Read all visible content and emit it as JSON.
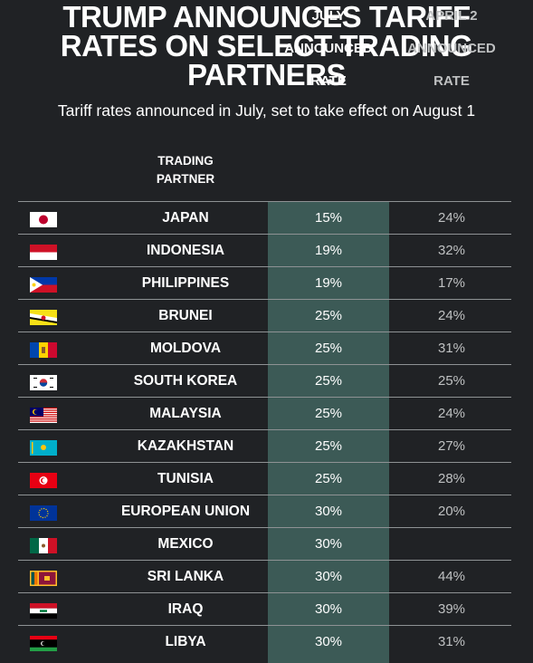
{
  "header": {
    "title_line1": "TRUMP ANNOUNCES TARIFF",
    "title_line2": "RATES ON SELECT TRADING",
    "title_line3": "PARTNERS",
    "subtitle": "Tariff rates announced in July, set to take effect on August 1"
  },
  "columns": {
    "partner": [
      "TRADING",
      "PARTNER"
    ],
    "july": [
      "JULY",
      "ANNOUNCED",
      "RATE"
    ],
    "april": [
      "APRIL 2",
      "ANNOUNCED",
      "RATE"
    ]
  },
  "colors": {
    "background": "#202225",
    "highlight_column": "#3c5a56",
    "divider": "#8e9294",
    "text": "#ffffff",
    "muted_text": "#bfc1c2"
  },
  "chart_data": {
    "type": "table",
    "title": "TRUMP ANNOUNCES TARIFF RATES ON SELECT TRADING PARTNERS",
    "subtitle": "Tariff rates announced in July, set to take effect on August 1",
    "columns": [
      "TRADING PARTNER",
      "JULY ANNOUNCED RATE",
      "APRIL 2 ANNOUNCED RATE"
    ],
    "rows": [
      {
        "partner": "JAPAN",
        "flag": "japan-flag-icon",
        "july": "15%",
        "april": "24%"
      },
      {
        "partner": "INDONESIA",
        "flag": "indonesia-flag-icon",
        "july": "19%",
        "april": "32%"
      },
      {
        "partner": "PHILIPPINES",
        "flag": "philippines-flag-icon",
        "july": "19%",
        "april": "17%"
      },
      {
        "partner": "BRUNEI",
        "flag": "brunei-flag-icon",
        "july": "25%",
        "april": "24%"
      },
      {
        "partner": "MOLDOVA",
        "flag": "moldova-flag-icon",
        "july": "25%",
        "april": "31%"
      },
      {
        "partner": "SOUTH KOREA",
        "flag": "south-korea-flag-icon",
        "july": "25%",
        "april": "25%"
      },
      {
        "partner": "MALAYSIA",
        "flag": "malaysia-flag-icon",
        "july": "25%",
        "april": "24%"
      },
      {
        "partner": "KAZAKHSTAN",
        "flag": "kazakhstan-flag-icon",
        "july": "25%",
        "april": "27%"
      },
      {
        "partner": "TUNISIA",
        "flag": "tunisia-flag-icon",
        "july": "25%",
        "april": "28%"
      },
      {
        "partner": "EUROPEAN UNION",
        "flag": "european-union-flag-icon",
        "july": "30%",
        "april": "20%"
      },
      {
        "partner": "MEXICO",
        "flag": "mexico-flag-icon",
        "july": "30%",
        "april": ""
      },
      {
        "partner": "SRI LANKA",
        "flag": "sri-lanka-flag-icon",
        "july": "30%",
        "april": "44%"
      },
      {
        "partner": "IRAQ",
        "flag": "iraq-flag-icon",
        "july": "30%",
        "april": "39%"
      },
      {
        "partner": "LIBYA",
        "flag": "libya-flag-icon",
        "july": "30%",
        "april": "31%"
      }
    ]
  }
}
